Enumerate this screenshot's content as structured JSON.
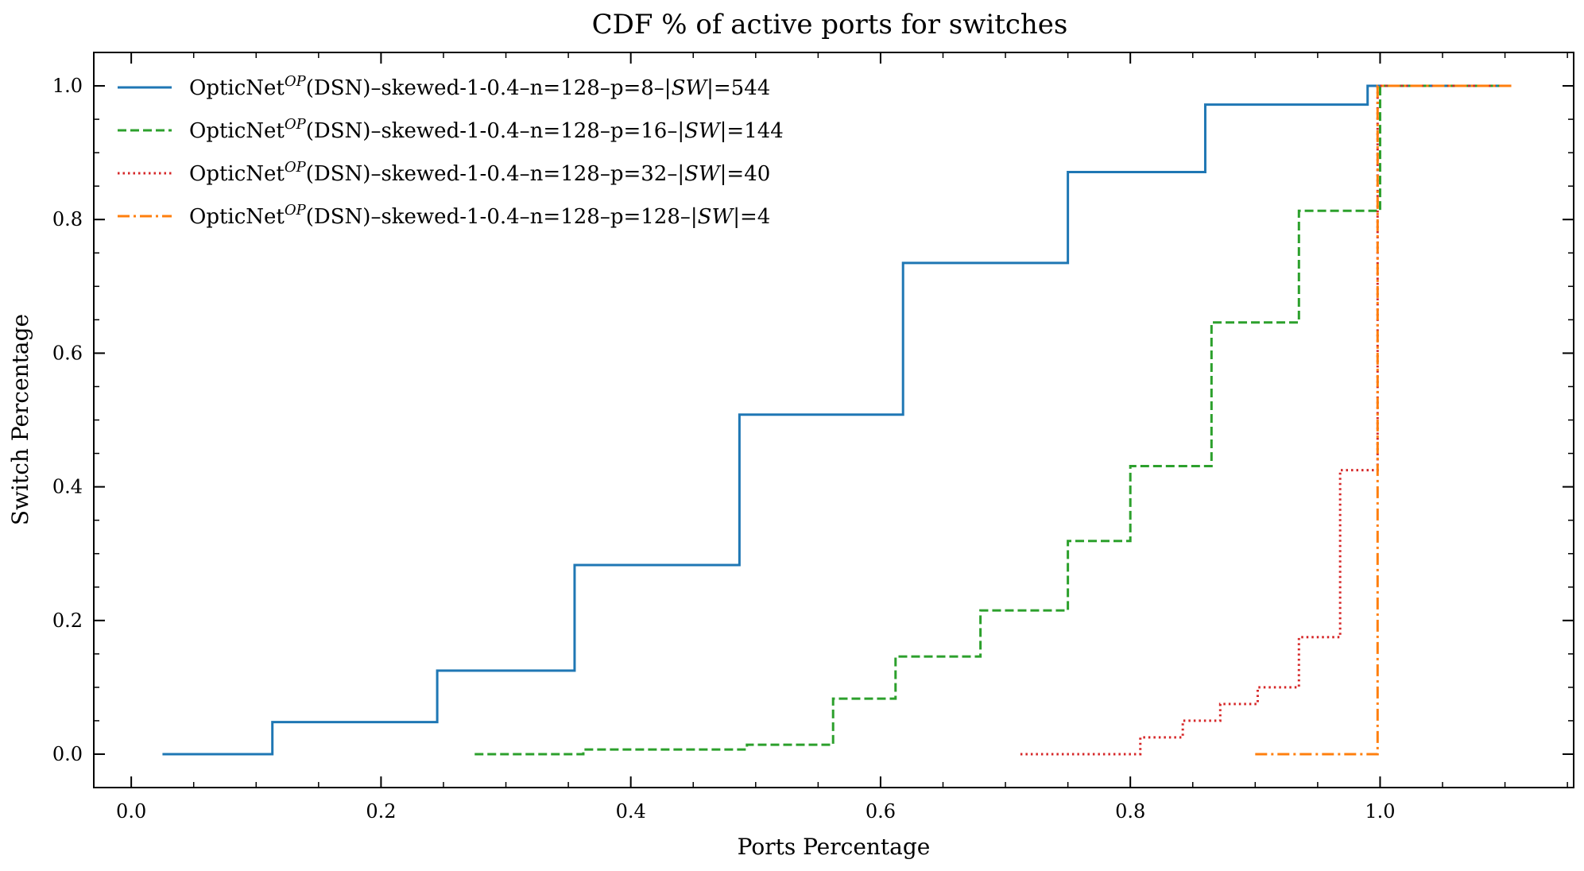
{
  "chart_data": {
    "type": "line",
    "title": "CDF % of active ports for switches",
    "xlabel": "Ports Percentage",
    "ylabel": "Switch Percentage",
    "xlim": [
      -0.03,
      1.155
    ],
    "ylim": [
      -0.05,
      1.05
    ],
    "xticks": [
      "0.0",
      "0.2",
      "0.4",
      "0.6",
      "0.8",
      "1.0"
    ],
    "yticks": [
      "0.0",
      "0.2",
      "0.4",
      "0.6",
      "0.8",
      "1.0"
    ],
    "grid": false,
    "legend_position": "top-left",
    "step": "post",
    "series": [
      {
        "name": "OpticNet^{OP}(DSN)–skewed-1-0.4–n=128–p=8–|SW|=544",
        "legend": {
          "base": "OpticNet",
          "sup": "OP",
          "mid": "(DSN)–skewed-1-0.4–n=128–p=8–|",
          "ital": "SW",
          "tail": "|=544"
        },
        "color": "#1f77b4",
        "style": "solid",
        "x": [
          0.025,
          0.113,
          0.245,
          0.355,
          0.487,
          0.618,
          0.75,
          0.86,
          0.99,
          1.105
        ],
        "y": [
          0.0,
          0.048,
          0.125,
          0.283,
          0.508,
          0.735,
          0.871,
          0.972,
          1.0,
          1.0
        ]
      },
      {
        "name": "OpticNet^{OP}(DSN)–skewed-1-0.4–n=128–p=16–|SW|=144",
        "legend": {
          "base": "OpticNet",
          "sup": "OP",
          "mid": "(DSN)–skewed-1-0.4–n=128–p=16–|",
          "ital": "SW",
          "tail": "|=144"
        },
        "color": "#2ca02c",
        "style": "dashed",
        "x": [
          0.275,
          0.362,
          0.493,
          0.562,
          0.612,
          0.68,
          0.75,
          0.8,
          0.865,
          0.935,
          1.0,
          1.105
        ],
        "y": [
          0.0,
          0.007,
          0.014,
          0.083,
          0.146,
          0.215,
          0.319,
          0.431,
          0.646,
          0.813,
          1.0,
          1.0
        ]
      },
      {
        "name": "OpticNet^{OP}(DSN)–skewed-1-0.4–n=128–p=32–|SW|=40",
        "legend": {
          "base": "OpticNet",
          "sup": "OP",
          "mid": "(DSN)–skewed-1-0.4–n=128–p=32–|",
          "ital": "SW",
          "tail": "|=40"
        },
        "color": "#d62728",
        "style": "dotted",
        "x": [
          0.712,
          0.808,
          0.842,
          0.872,
          0.902,
          0.935,
          0.968,
          0.998,
          1.105
        ],
        "y": [
          0.0,
          0.025,
          0.05,
          0.075,
          0.1,
          0.175,
          0.425,
          1.0,
          1.0
        ]
      },
      {
        "name": "OpticNet^{OP}(DSN)–skewed-1-0.4–n=128–p=128–|SW|=4",
        "legend": {
          "base": "OpticNet",
          "sup": "OP",
          "mid": "(DSN)–skewed-1-0.4–n=128–p=128–|",
          "ital": "SW",
          "tail": "|=4"
        },
        "color": "#ff7f0e",
        "style": "dashdot",
        "x": [
          0.9,
          0.998,
          1.105
        ],
        "y": [
          0.0,
          1.0,
          1.0
        ]
      }
    ]
  }
}
